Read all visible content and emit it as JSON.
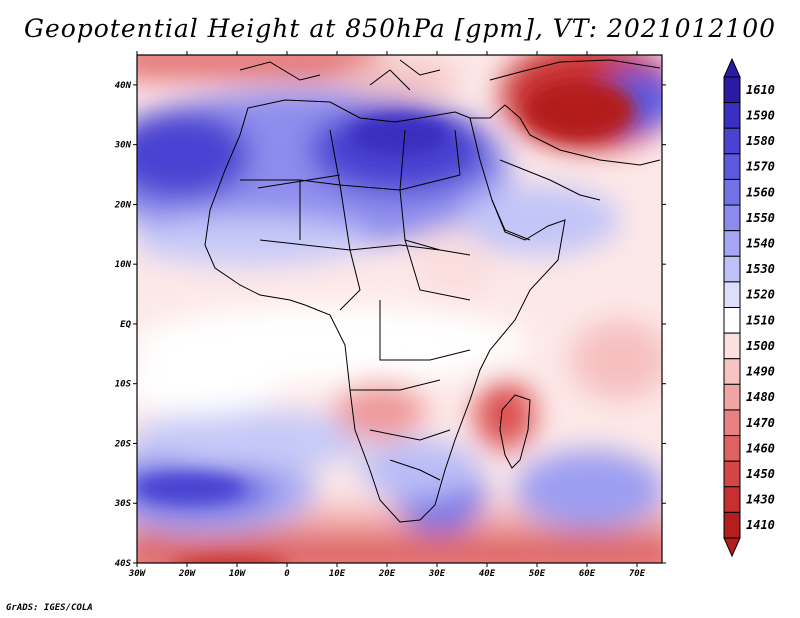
{
  "title": "Geopotential Height at 850hPa [gpm], VT: 2021012100",
  "footer": "GrADS: IGES/COLA",
  "map": {
    "region": "Africa",
    "lon_range": [
      -30,
      75
    ],
    "lat_range": [
      -40,
      45
    ],
    "lon_ticks": [
      "30W",
      "20W",
      "10W",
      "0",
      "10E",
      "20E",
      "30E",
      "40E",
      "50E",
      "60E",
      "70E"
    ],
    "lat_ticks": [
      "40N",
      "30N",
      "20N",
      "10N",
      "EQ",
      "10S",
      "20S",
      "30S",
      "40S"
    ]
  },
  "colorbar": {
    "levels": [
      "1610",
      "1590",
      "1580",
      "1570",
      "1560",
      "1550",
      "1540",
      "1530",
      "1520",
      "1510",
      "1500",
      "1490",
      "1480",
      "1470",
      "1460",
      "1450",
      "1430",
      "1410"
    ],
    "colors": [
      "#2b1aa4",
      "#3a2fbf",
      "#4a43d2",
      "#5d5ade",
      "#7372e6",
      "#8b8bee",
      "#a4a6f3",
      "#bfc2f8",
      "#dcdefb",
      "#ffffff",
      "#fbe0e0",
      "#f7c3c3",
      "#f0a4a4",
      "#e88282",
      "#de6262",
      "#d44646",
      "#c63030",
      "#b41e1e"
    ]
  }
}
